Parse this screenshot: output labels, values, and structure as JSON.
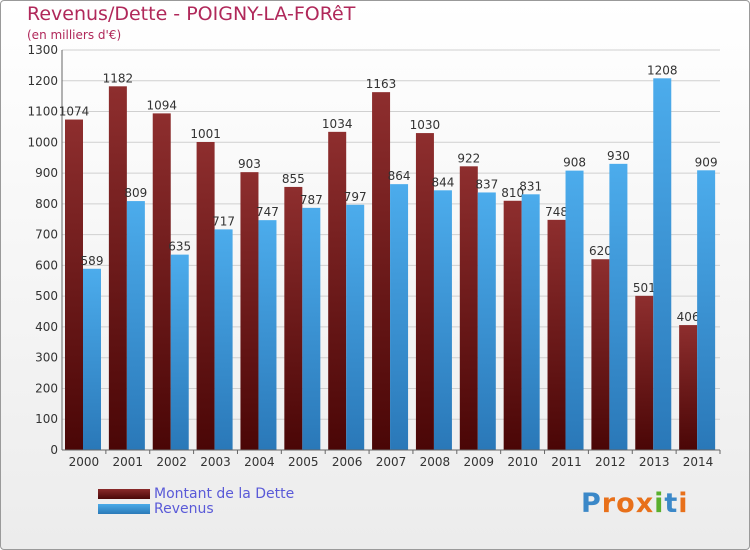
{
  "chart_data": {
    "type": "bar",
    "title": "Revenus/Dette - POIGNY-LA-FORêT",
    "subtitle": "(en milliers d'€)",
    "categories": [
      "2000",
      "2001",
      "2002",
      "2003",
      "2004",
      "2005",
      "2006",
      "2007",
      "2008",
      "2009",
      "2010",
      "2011",
      "2012",
      "2013",
      "2014"
    ],
    "series": [
      {
        "name": "Montant de la Dette",
        "color": "#7a1c1c",
        "values": [
          1074,
          1182,
          1094,
          1001,
          903,
          855,
          1034,
          1163,
          1030,
          922,
          810,
          748,
          620,
          501,
          406
        ]
      },
      {
        "name": "Revenus",
        "color": "#3a9ad9",
        "values": [
          589,
          809,
          635,
          717,
          747,
          787,
          797,
          864,
          844,
          837,
          831,
          908,
          930,
          1208,
          909
        ]
      }
    ],
    "yticks": [
      0,
      100,
      200,
      300,
      400,
      500,
      600,
      700,
      800,
      900,
      1000,
      1100,
      1200,
      1300
    ],
    "ylim": [
      0,
      1300
    ],
    "grid": true,
    "legend_position": "bottom-left"
  },
  "logo": {
    "letters": [
      "P",
      "r",
      "o",
      "x",
      "i",
      "t",
      "i"
    ],
    "colors": [
      "#3b88c8",
      "#e8701a",
      "#e8701a",
      "#e8701a",
      "#5ab02e",
      "#3b88c8",
      "#e8701a"
    ]
  }
}
